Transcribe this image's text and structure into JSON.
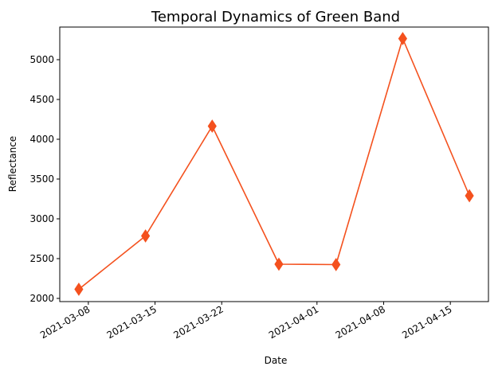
{
  "chart_data": {
    "type": "line",
    "title": "Temporal Dynamics of Green Band",
    "xlabel": "Date",
    "ylabel": "Reflectance",
    "x": [
      "2021-03-07",
      "2021-03-14",
      "2021-03-21",
      "2021-03-28",
      "2021-04-03",
      "2021-04-10",
      "2021-04-17"
    ],
    "series": [
      {
        "values": [
          2115,
          2785,
          4165,
          2430,
          2425,
          5265,
          3290
        ]
      }
    ],
    "xticks": [
      "2021-03-08",
      "2021-03-15",
      "2021-03-22",
      "2021-04-01",
      "2021-04-08",
      "2021-04-15"
    ],
    "yticks": [
      2000,
      2500,
      3000,
      3500,
      4000,
      4500,
      5000
    ],
    "xlim": [
      "2021-03-05",
      "2021-04-19"
    ],
    "ylim": [
      1960,
      5410
    ],
    "grid": false,
    "legend": "none",
    "marker": "diamond",
    "color": "#f4511e"
  }
}
